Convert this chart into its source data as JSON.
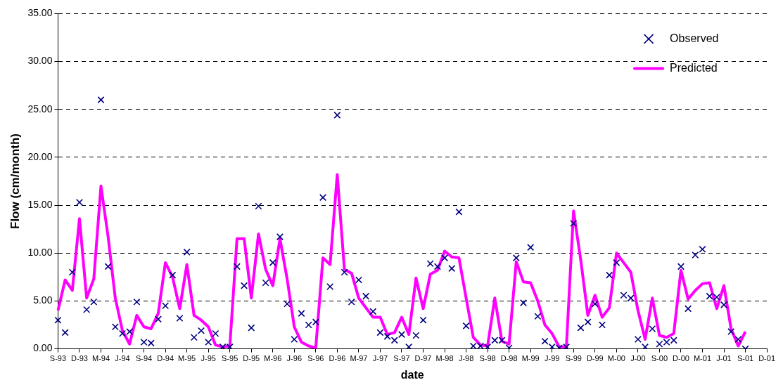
{
  "chart_data": {
    "type": "line",
    "xlabel": "date",
    "ylabel": "Flow (cm/month)",
    "categories": [
      "S-93",
      null,
      null,
      "D-93",
      null,
      null,
      "M-94",
      null,
      null,
      "J-94",
      null,
      null,
      "S-94",
      null,
      null,
      "D-94",
      null,
      null,
      "M-95",
      null,
      null,
      "J-95",
      null,
      null,
      "S-95",
      null,
      null,
      "D-95",
      null,
      null,
      "M-96",
      null,
      null,
      "J-96",
      null,
      null,
      "S-96",
      null,
      null,
      "D-96",
      null,
      null,
      "M-97",
      null,
      null,
      "J-97",
      null,
      null,
      "S-97",
      null,
      null,
      "D-97",
      null,
      null,
      "M-98",
      null,
      null,
      "J-98",
      null,
      null,
      "S-98",
      null,
      null,
      "D-98",
      null,
      null,
      "M-99",
      null,
      null,
      "J-99",
      null,
      null,
      "S-99",
      null,
      null,
      "D-99",
      null,
      null,
      "M-00",
      null,
      null,
      "J-00",
      null,
      null,
      "S-00",
      null,
      null,
      "D-00",
      null,
      null,
      "M-01",
      null,
      null,
      "J-01",
      null,
      null,
      "S-01",
      null,
      null,
      "D-01"
    ],
    "series": [
      {
        "name": "Observed",
        "type": "scatter",
        "marker": "cross",
        "color": "#000080",
        "values": [
          3.0,
          1.7,
          8.0,
          15.3,
          4.1,
          4.9,
          26.0,
          8.6,
          2.3,
          1.6,
          1.8,
          4.9,
          0.7,
          0.6,
          3.1,
          4.5,
          7.7,
          3.2,
          10.1,
          1.2,
          1.9,
          0.7,
          1.6,
          0.2,
          0.2,
          8.6,
          6.6,
          2.2,
          14.9,
          6.9,
          9.0,
          11.7,
          4.7,
          1.0,
          3.7,
          2.5,
          2.8,
          15.8,
          6.5,
          24.4,
          8.0,
          4.9,
          7.2,
          5.5,
          3.9,
          1.7,
          1.3,
          0.9,
          1.5,
          0.2,
          1.4,
          3.0,
          8.9,
          8.6,
          9.5,
          8.4,
          14.3,
          2.4,
          0.3,
          0.3,
          0.2,
          0.9,
          0.9,
          0.1,
          9.5,
          4.8,
          10.6,
          3.4,
          0.8,
          0.2,
          0.1,
          0.2,
          13.1,
          2.2,
          2.8,
          4.7,
          2.5,
          7.7,
          9.0,
          5.6,
          5.3,
          1.0,
          0.2,
          2.1,
          0.5,
          0.7,
          0.9,
          8.6,
          4.2,
          9.8,
          10.4,
          5.5,
          5.4,
          4.6,
          1.8,
          1.0,
          0.0,
          null,
          null,
          null
        ]
      },
      {
        "name": "Predicted",
        "type": "line",
        "marker": "none",
        "line_style": "solid",
        "color": "#ff00ff",
        "values": [
          4.0,
          7.2,
          6.1,
          13.6,
          5.3,
          7.3,
          17.0,
          11.7,
          5.3,
          1.9,
          0.5,
          3.5,
          2.3,
          2.1,
          3.7,
          9.0,
          7.5,
          4.2,
          8.8,
          3.5,
          3.0,
          2.3,
          0.4,
          0.2,
          0.3,
          11.5,
          11.5,
          5.3,
          12.0,
          8.3,
          6.6,
          11.5,
          7.3,
          2.3,
          0.7,
          0.3,
          0.1,
          9.5,
          8.8,
          18.2,
          8.3,
          7.9,
          5.3,
          4.3,
          3.3,
          3.3,
          1.5,
          1.7,
          3.3,
          1.5,
          7.4,
          4.2,
          7.8,
          8.2,
          10.2,
          9.6,
          9.5,
          5.3,
          1.2,
          0.4,
          0.3,
          5.3,
          0.8,
          0.5,
          9.1,
          7.0,
          6.9,
          5.0,
          2.5,
          1.6,
          0.2,
          0.2,
          14.4,
          9.3,
          3.5,
          5.6,
          3.3,
          4.3,
          10.0,
          9.0,
          8.0,
          4.0,
          1.0,
          5.3,
          1.4,
          1.2,
          1.6,
          8.2,
          5.2,
          6.1,
          6.8,
          6.9,
          4.2,
          6.6,
          2.1,
          0.3,
          1.8,
          null,
          null,
          null
        ]
      }
    ],
    "ylim": [
      0,
      35
    ],
    "yticks": [
      {
        "value": 0,
        "label": "0.00"
      },
      {
        "value": 5,
        "label": "5.00"
      },
      {
        "value": 10,
        "label": "10.00"
      },
      {
        "value": 15,
        "label": "15.00"
      },
      {
        "value": 20,
        "label": "20.00"
      },
      {
        "value": 25,
        "label": "25.00"
      },
      {
        "value": 30,
        "label": "30.00"
      },
      {
        "value": 35,
        "label": "35.00"
      }
    ],
    "grid": "y",
    "legend": "top right"
  }
}
